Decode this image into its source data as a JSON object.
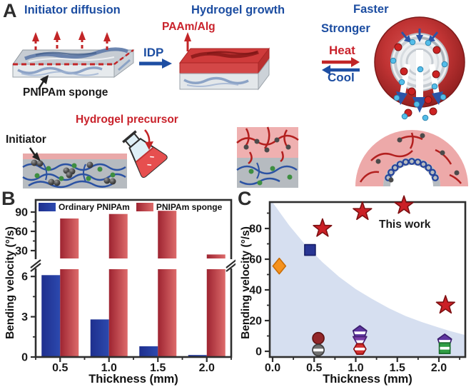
{
  "panelA": {
    "letter": "A",
    "title_left": "Initiator diffusion",
    "title_middle": "Hydrogel growth",
    "label_paam_alg": "PAAm/Alg",
    "label_idp": "IDP",
    "label_pnipam_sponge": "PNIPAm sponge",
    "label_faster": "Faster",
    "label_stronger": "Stronger",
    "label_heat": "Heat",
    "label_cool": "Cool",
    "label_initiator": "Initiator",
    "label_hydrogel_precursor": "Hydrogel precursor",
    "colors": {
      "blue_text": "#1c4da1",
      "red_text": "#c9222b",
      "black_text": "#1a1a1a"
    }
  },
  "panelB": {
    "letter": "B"
  },
  "panelC": {
    "letter": "C"
  },
  "chart_data": [
    {
      "panel": "B",
      "type": "bar",
      "categories": [
        "0.5",
        "1.0",
        "1.5",
        "2.0"
      ],
      "series": [
        {
          "name": "Ordinary PNIPAm",
          "color": "#23399b",
          "gradient": [
            "#1e2f8e",
            "#2c49ae"
          ],
          "values": [
            6.1,
            2.8,
            0.8,
            0.15
          ]
        },
        {
          "name": "PNIPAm sponge",
          "color": "#c8434b",
          "gradient": [
            "#9e2431",
            "#dd6b6b"
          ],
          "values": [
            80,
            87,
            92,
            24
          ]
        }
      ],
      "xlabel": "Thickness (mm)",
      "ylabel": "Bending velocity (°/s)",
      "axis_break": {
        "lower_ticks": [
          "0",
          "3",
          "6"
        ],
        "upper_ticks": [
          "30",
          "60",
          "90"
        ],
        "lower_minor": [
          1.5,
          4.5
        ],
        "upper_minor": [
          45,
          75
        ]
      },
      "legend_position": "top-inside"
    },
    {
      "panel": "C",
      "type": "scatter",
      "xlabel": "Thickness (mm)",
      "ylabel": "Bending velocity (°/s)",
      "xlim": [
        0,
        2.32
      ],
      "ylim": [
        0,
        97
      ],
      "x_ticks": [
        "0.0",
        "0.5",
        "1.0",
        "1.5",
        "2.0"
      ],
      "x_tick_values": [
        0,
        0.5,
        1,
        1.5,
        2
      ],
      "x_minor_values": [
        0.25,
        0.75,
        1.25,
        1.75,
        2.25
      ],
      "y_ticks": [
        "0",
        "20",
        "40",
        "60",
        "80"
      ],
      "y_tick_values": [
        0,
        20,
        40,
        60,
        80
      ],
      "y_minor_values": [
        10,
        30,
        50,
        70,
        90
      ],
      "annotation": "This work",
      "shaded_region": {
        "color": "#d6dff0",
        "boundary": [
          [
            0,
            97
          ],
          [
            0.2,
            82
          ],
          [
            0.4,
            69
          ],
          [
            0.6,
            58
          ],
          [
            0.8,
            48.5
          ],
          [
            1.0,
            40.5
          ],
          [
            1.2,
            34
          ],
          [
            1.4,
            28
          ],
          [
            1.6,
            23
          ],
          [
            1.8,
            19
          ],
          [
            2.0,
            15.5
          ],
          [
            2.15,
            13
          ],
          [
            2.32,
            10.5
          ]
        ]
      },
      "series": [
        {
          "name": "This work",
          "marker": "star",
          "color": "#cb2026",
          "edge": "#7e1012",
          "points": [
            [
              0.6,
              80
            ],
            [
              1.08,
              91
            ],
            [
              1.58,
              95
            ],
            [
              2.08,
              30
            ]
          ]
        },
        {
          "name": "reported-orange-diamond",
          "marker": "diamond",
          "color": "#f5921e",
          "edge": "#c96d07",
          "points": [
            [
              0.08,
              55.5
            ]
          ]
        },
        {
          "name": "reported-navy-square",
          "marker": "square",
          "color": "#283593",
          "edge": "#161d66",
          "points": [
            [
              0.45,
              66
            ]
          ]
        },
        {
          "name": "reported-darkred-circle",
          "marker": "circle",
          "color": "#93272a",
          "edge": "#5e1212",
          "points": [
            [
              0.55,
              8.5
            ]
          ]
        },
        {
          "name": "reported-gray-circle",
          "marker": "circle-half",
          "color": "#6f6f6f",
          "edge": "#3f3f3f",
          "points": [
            [
              0.55,
              0.8
            ]
          ]
        },
        {
          "name": "reported-purple-pentagon",
          "marker": "pentagon-half",
          "color": "#5e35a0",
          "edge": "#3c1f6e",
          "points": [
            [
              1.05,
              12
            ],
            [
              2.07,
              6.5
            ]
          ]
        },
        {
          "name": "reported-violet-triangle",
          "marker": "triangle-down-half",
          "color": "#7b3fa8",
          "edge": "#4a2378",
          "points": [
            [
              1.05,
              6.3
            ]
          ]
        },
        {
          "name": "reported-red-hexagon",
          "marker": "hexagon-half",
          "color": "#d32f2f",
          "edge": "#8e1111",
          "points": [
            [
              1.05,
              1.5
            ]
          ]
        },
        {
          "name": "reported-green-square",
          "marker": "square-half",
          "color": "#2f9e44",
          "edge": "#1b6e2f",
          "points": [
            [
              2.07,
              2
            ]
          ]
        }
      ]
    }
  ]
}
